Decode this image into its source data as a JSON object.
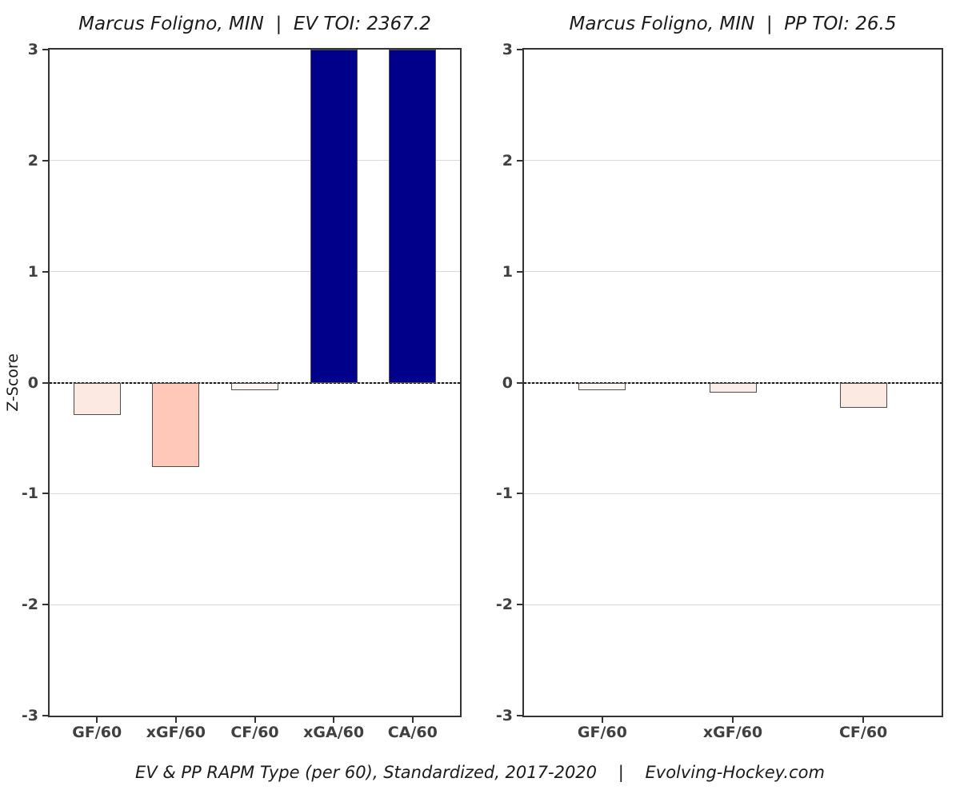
{
  "figure": {
    "caption": "EV & PP RAPM Type (per 60), Standardized, 2017-2020    |    Evolving-Hockey.com",
    "y_axis_title": "Z-Score",
    "background": "#ffffff"
  },
  "colors": {
    "positive_bar": "#00008b",
    "grid": "#d9d9d9",
    "panel_border": "#333333",
    "zero_line": "#1a1a1a",
    "tick_text": "#404040",
    "title_text": "#1a1a1a",
    "bar_border": "#4d4d4d"
  },
  "chart_data": [
    {
      "type": "bar",
      "title": "Marcus Foligno, MIN  |  EV TOI: 2367.2",
      "player": "Marcus Foligno",
      "team": "MIN",
      "strength": "EV",
      "toi": 2367.2,
      "ylabel": "Z-Score",
      "ylim": [
        -3,
        3
      ],
      "yticks": [
        3,
        2,
        1,
        0,
        -1,
        -2,
        -3
      ],
      "grid": "horizontal-major",
      "legend": "none",
      "categories": [
        "GF/60",
        "xGF/60",
        "CF/60",
        "xGA/60",
        "CA/60"
      ],
      "values": [
        -0.29,
        -0.76,
        -0.07,
        3,
        3
      ],
      "clipped_at_max": [
        false,
        false,
        false,
        true,
        true
      ],
      "bar_colors": [
        "#fce9e1",
        "#ffc8b9",
        "#fdf6f3",
        "#00008b",
        "#00008b"
      ]
    },
    {
      "type": "bar",
      "title": "Marcus Foligno, MIN  |  PP TOI: 26.5",
      "player": "Marcus Foligno",
      "team": "MIN",
      "strength": "PP",
      "toi": 26.5,
      "ylabel": "Z-Score",
      "ylim": [
        -3,
        3
      ],
      "yticks": [
        3,
        2,
        1,
        0,
        -1,
        -2,
        -3
      ],
      "grid": "horizontal-major",
      "legend": "none",
      "categories": [
        "GF/60",
        "xGF/60",
        "CF/60"
      ],
      "values": [
        -0.07,
        -0.09,
        -0.23
      ],
      "clipped_at_max": [
        false,
        false,
        false
      ],
      "bar_colors": [
        "#fdf7f4",
        "#faeeea",
        "#fce9e2"
      ]
    }
  ]
}
